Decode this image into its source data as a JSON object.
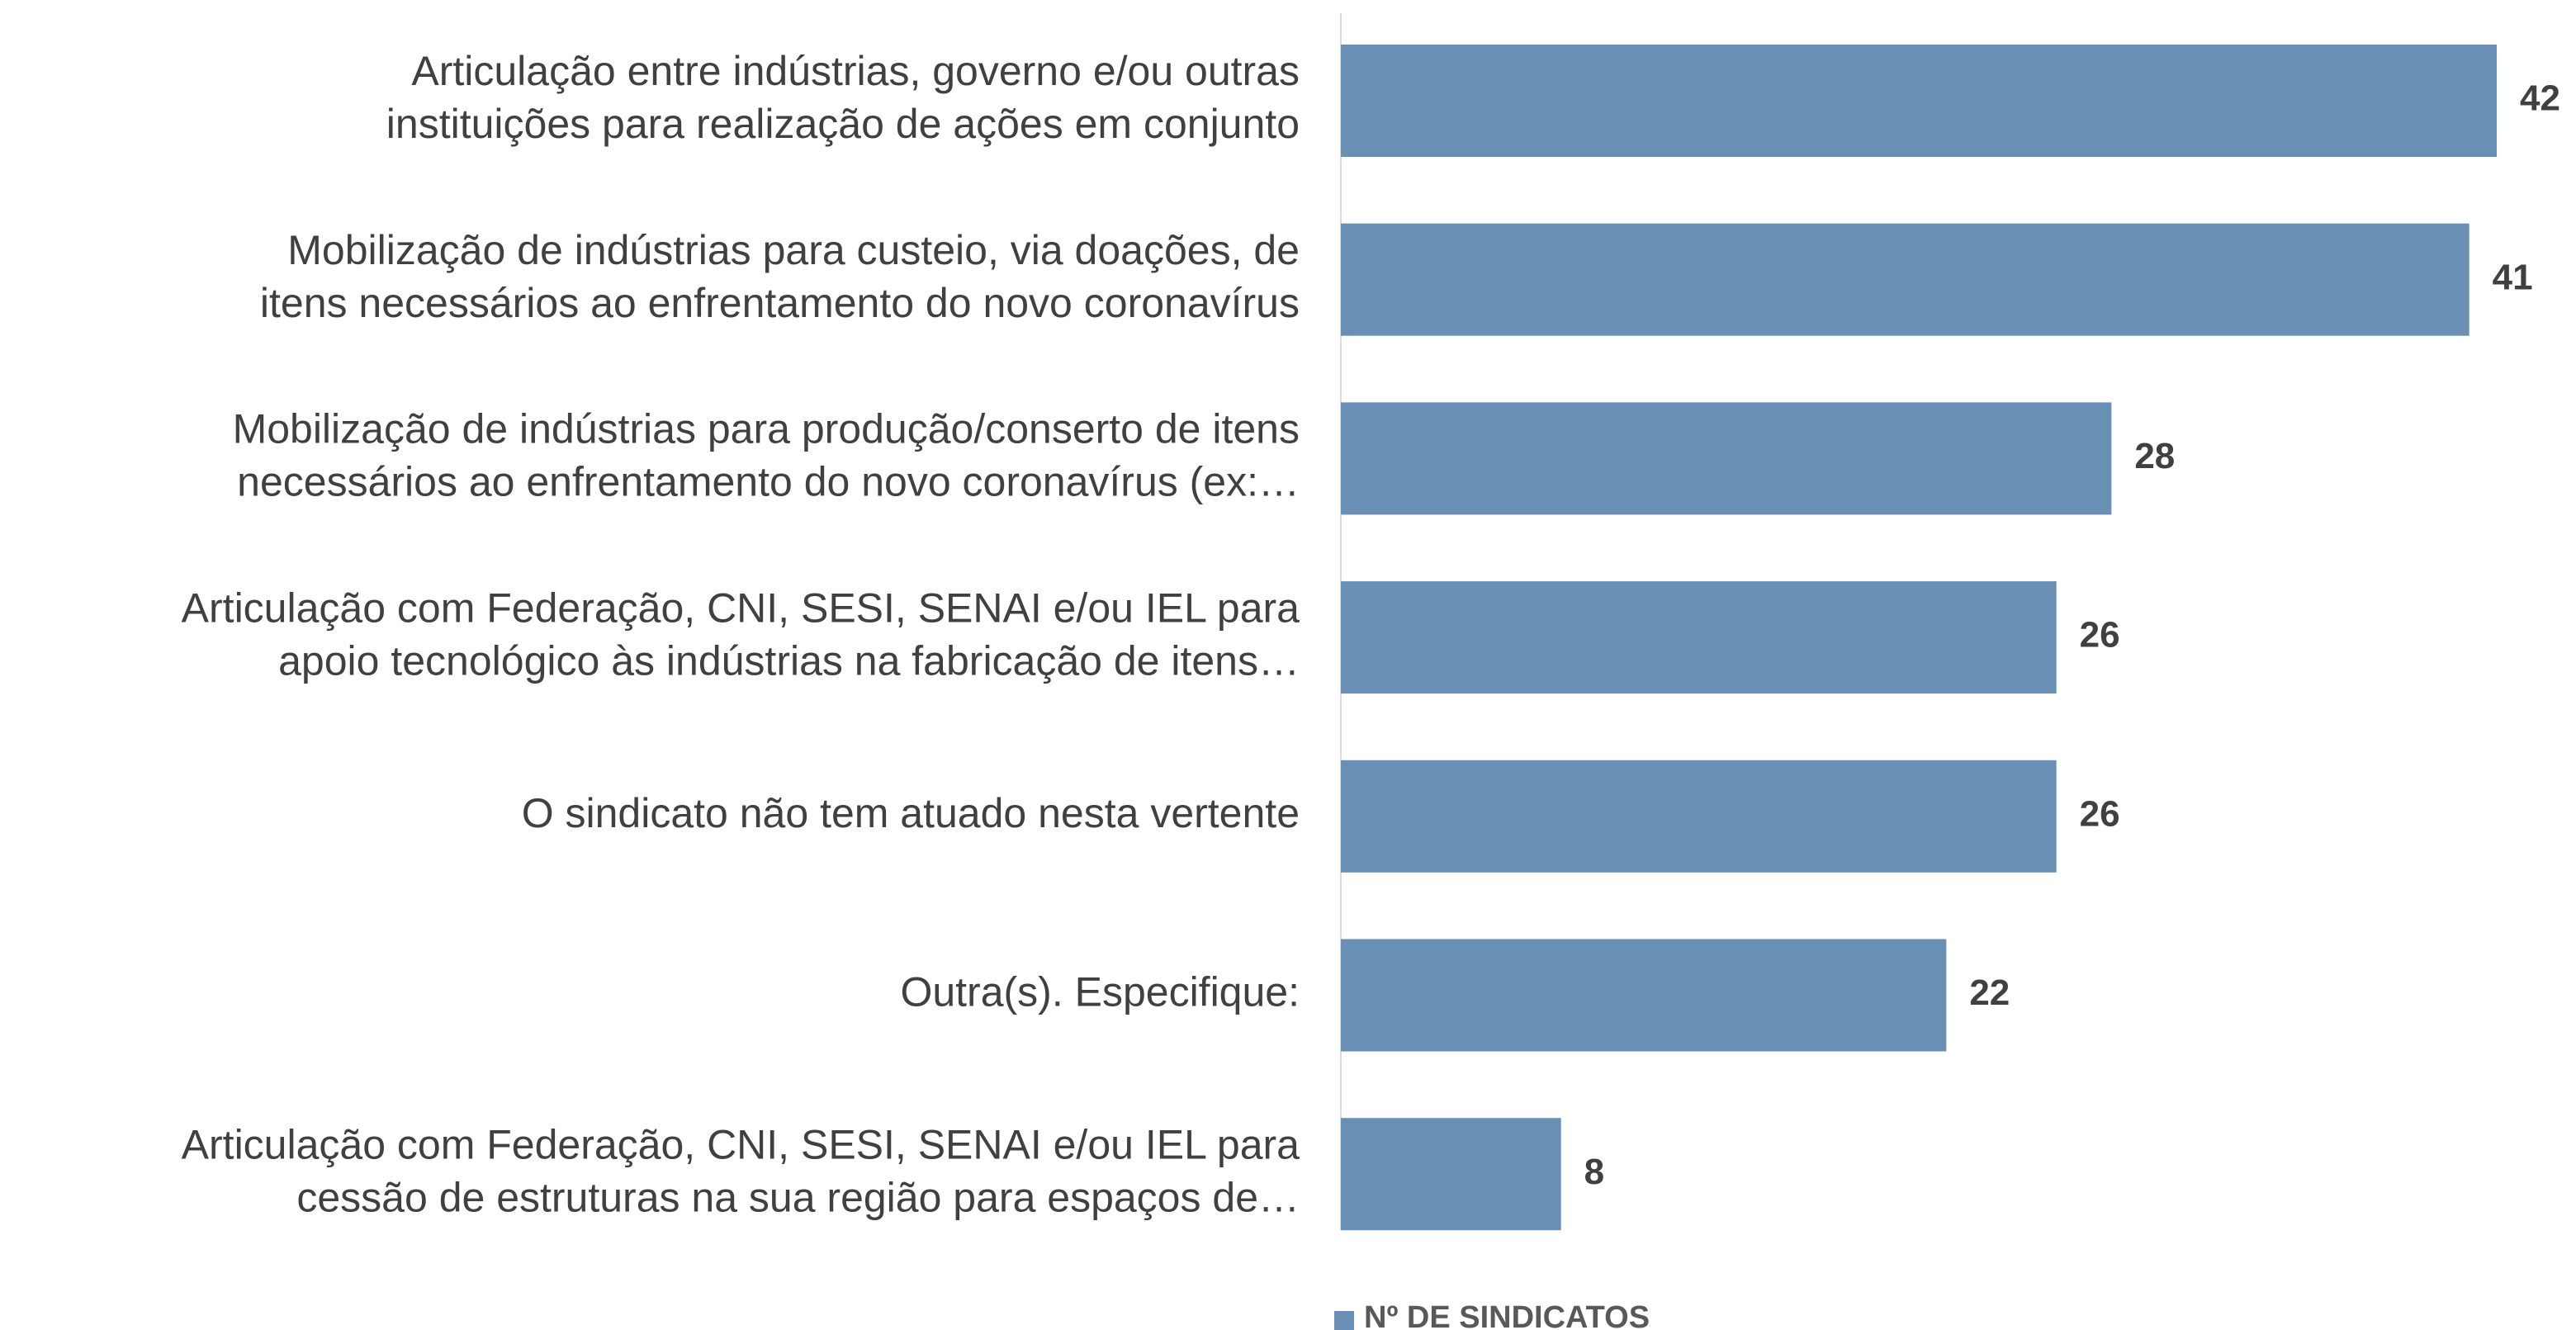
{
  "chart_data": {
    "type": "bar",
    "orientation": "horizontal",
    "categories": [
      [
        "Articulação entre indústrias, governo e/ou outras",
        "instituições para realização de ações em conjunto"
      ],
      [
        "Mobilização de indústrias para custeio, via doações, de",
        "itens necessários ao enfrentamento do novo coronavírus"
      ],
      [
        "Mobilização de indústrias para produção/conserto de itens",
        "necessários ao enfrentamento do novo coronavírus (ex:…"
      ],
      [
        "Articulação com Federação, CNI, SESI, SENAI e/ou IEL para",
        "apoio tecnológico às indústrias na fabricação de itens…"
      ],
      [
        "O sindicato não tem atuado nesta vertente"
      ],
      [
        "Outra(s). Especifique:"
      ],
      [
        "Articulação com Federação, CNI, SESI, SENAI e/ou IEL para",
        "cessão de estruturas na sua região para espaços de…"
      ]
    ],
    "series": [
      {
        "name": "Nº DE SINDICATOS",
        "color": "#6a8fb4",
        "values": [
          42,
          41,
          28,
          26,
          26,
          22,
          8
        ]
      }
    ],
    "legend": "bottom"
  }
}
